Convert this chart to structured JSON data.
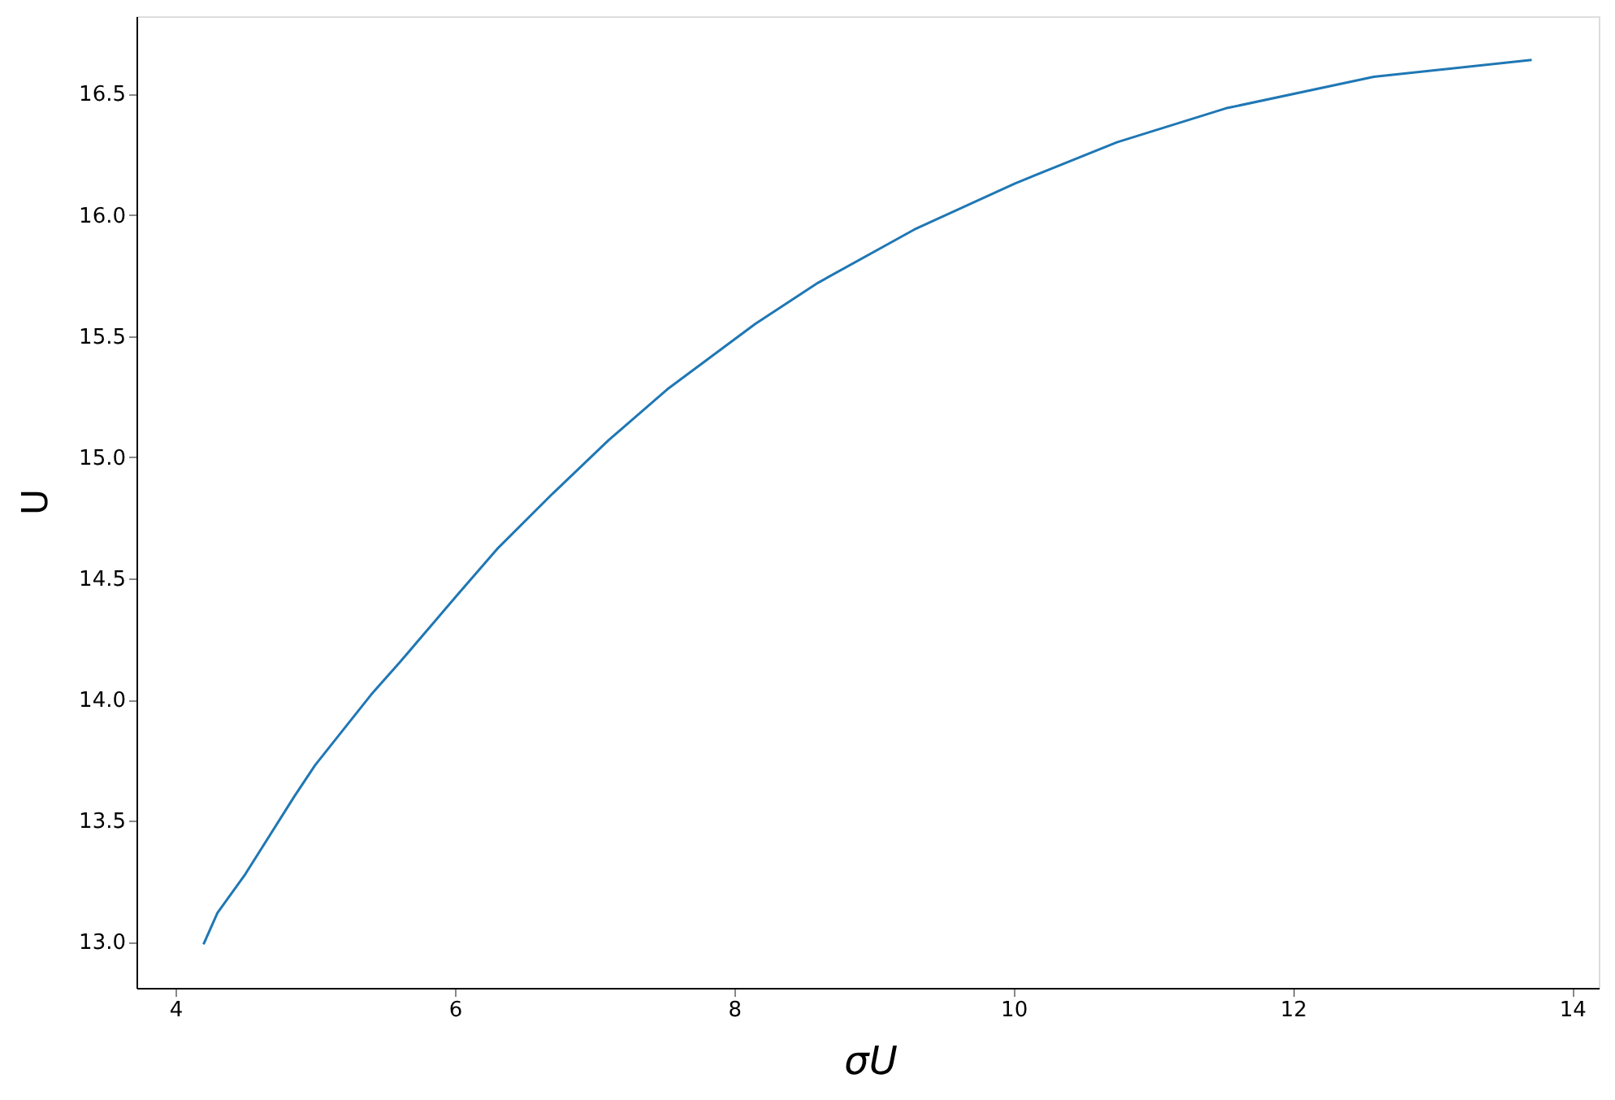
{
  "chart_data": {
    "type": "line",
    "xlabel": "σU",
    "ylabel": "U",
    "x": [
      4.2,
      4.3,
      4.5,
      4.85,
      5.0,
      5.4,
      5.6,
      6.0,
      6.3,
      6.7,
      7.1,
      7.52,
      8.15,
      8.6,
      9.29,
      10.01,
      10.74,
      11.52,
      12.58,
      13.71
    ],
    "series": [
      {
        "color": "#1f77b4",
        "values": [
          12.99,
          13.12,
          13.28,
          13.6,
          13.73,
          14.02,
          14.15,
          14.42,
          14.62,
          14.85,
          15.07,
          15.28,
          15.55,
          15.72,
          15.94,
          16.13,
          16.3,
          16.44,
          16.57,
          16.64
        ]
      }
    ],
    "xlim": [
      3.72,
      14.19
    ],
    "ylim": [
      12.81,
      16.82
    ],
    "xticks": [
      4,
      6,
      8,
      10,
      12,
      14
    ],
    "yticks": [
      {
        "value": 13.0,
        "label": "13.0"
      },
      {
        "value": 13.5,
        "label": "13.5"
      },
      {
        "value": 14.0,
        "label": "14.0"
      },
      {
        "value": 14.5,
        "label": "14.5"
      },
      {
        "value": 15.0,
        "label": "15.0"
      },
      {
        "value": 15.5,
        "label": "15.5"
      },
      {
        "value": 16.0,
        "label": "16.0"
      },
      {
        "value": 16.5,
        "label": "16.5"
      }
    ],
    "grid": false,
    "marker": "none",
    "line_style": "solid"
  }
}
